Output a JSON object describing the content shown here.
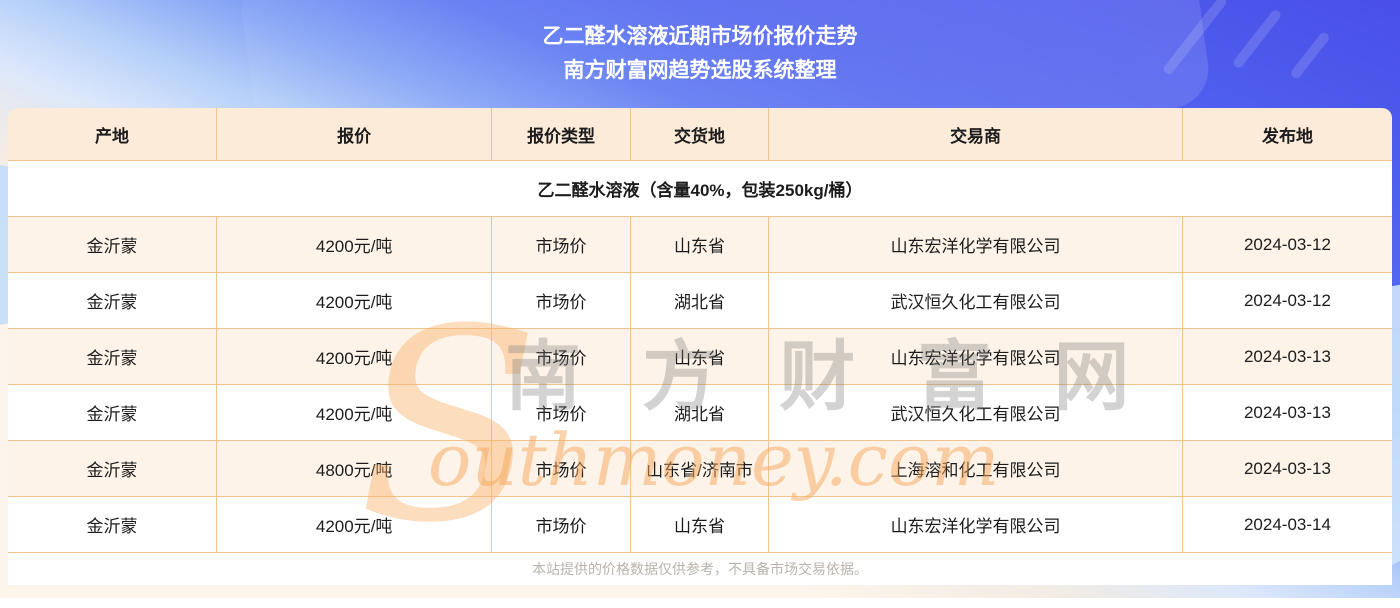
{
  "page": {
    "title_line1": "乙二醛水溶液近期市场价报价走势",
    "title_line2": "南方财富网趋势选股系统整理"
  },
  "table": {
    "columns": [
      "产地",
      "报价",
      "报价类型",
      "交货地",
      "交易商",
      "发布地"
    ],
    "product_header": "乙二醛水溶液（含量40%，包装250kg/桶）",
    "rows": [
      {
        "origin": "金沂蒙",
        "price": "4200元/吨",
        "price_type": "市场价",
        "delivery": "山东省",
        "trader": "山东宏洋化学有限公司",
        "date": "2024-03-12"
      },
      {
        "origin": "金沂蒙",
        "price": "4200元/吨",
        "price_type": "市场价",
        "delivery": "湖北省",
        "trader": "武汉恒久化工有限公司",
        "date": "2024-03-12"
      },
      {
        "origin": "金沂蒙",
        "price": "4200元/吨",
        "price_type": "市场价",
        "delivery": "山东省",
        "trader": "山东宏洋化学有限公司",
        "date": "2024-03-13"
      },
      {
        "origin": "金沂蒙",
        "price": "4200元/吨",
        "price_type": "市场价",
        "delivery": "湖北省",
        "trader": "武汉恒久化工有限公司",
        "date": "2024-03-13"
      },
      {
        "origin": "金沂蒙",
        "price": "4800元/吨",
        "price_type": "市场价",
        "delivery": "山东省/济南市",
        "trader": "上海溶和化工有限公司",
        "date": "2024-03-13"
      },
      {
        "origin": "金沂蒙",
        "price": "4200元/吨",
        "price_type": "市场价",
        "delivery": "山东省",
        "trader": "山东宏洋化学有限公司",
        "date": "2024-03-14"
      }
    ],
    "disclaimer": "本站提供的价格数据仅供参考，不具备市场交易依据。"
  },
  "watermark": {
    "s": "S",
    "cn": "南 方 财 富 网",
    "en": "outhmoney.com"
  },
  "colors": {
    "page_top_blue": "#4a4fe6",
    "page_bottom_cream": "#fdf5ec",
    "table_border": "#f2c48d",
    "header_bg": "#fcebd9",
    "row_alt_bg": "#fdf3e8",
    "title_text": "#ffffff",
    "cell_text": "#1c1c1c",
    "disclaimer_text": "#b9b3ac",
    "watermark_orange": "#f7af64",
    "watermark_gray": "#767676"
  },
  "chart_data": {
    "type": "table",
    "title": "乙二醛水溶液近期市场价报价走势",
    "subtitle": "南方财富网趋势选股系统整理",
    "product": "乙二醛水溶液（含量40%，包装250kg/桶）",
    "columns": [
      "产地",
      "报价",
      "报价类型",
      "交货地",
      "交易商",
      "发布地"
    ],
    "rows": [
      [
        "金沂蒙",
        "4200元/吨",
        "市场价",
        "山东省",
        "山东宏洋化学有限公司",
        "2024-03-12"
      ],
      [
        "金沂蒙",
        "4200元/吨",
        "市场价",
        "湖北省",
        "武汉恒久化工有限公司",
        "2024-03-12"
      ],
      [
        "金沂蒙",
        "4200元/吨",
        "市场价",
        "山东省",
        "山东宏洋化学有限公司",
        "2024-03-13"
      ],
      [
        "金沂蒙",
        "4200元/吨",
        "市场价",
        "湖北省",
        "武汉恒久化工有限公司",
        "2024-03-13"
      ],
      [
        "金沂蒙",
        "4800元/吨",
        "市场价",
        "山东省/济南市",
        "上海溶和化工有限公司",
        "2024-03-13"
      ],
      [
        "金沂蒙",
        "4200元/吨",
        "市场价",
        "山东省",
        "山东宏洋化学有限公司",
        "2024-03-14"
      ]
    ],
    "prices_numeric_cny_per_ton": [
      4200,
      4200,
      4200,
      4200,
      4800,
      4200
    ]
  }
}
